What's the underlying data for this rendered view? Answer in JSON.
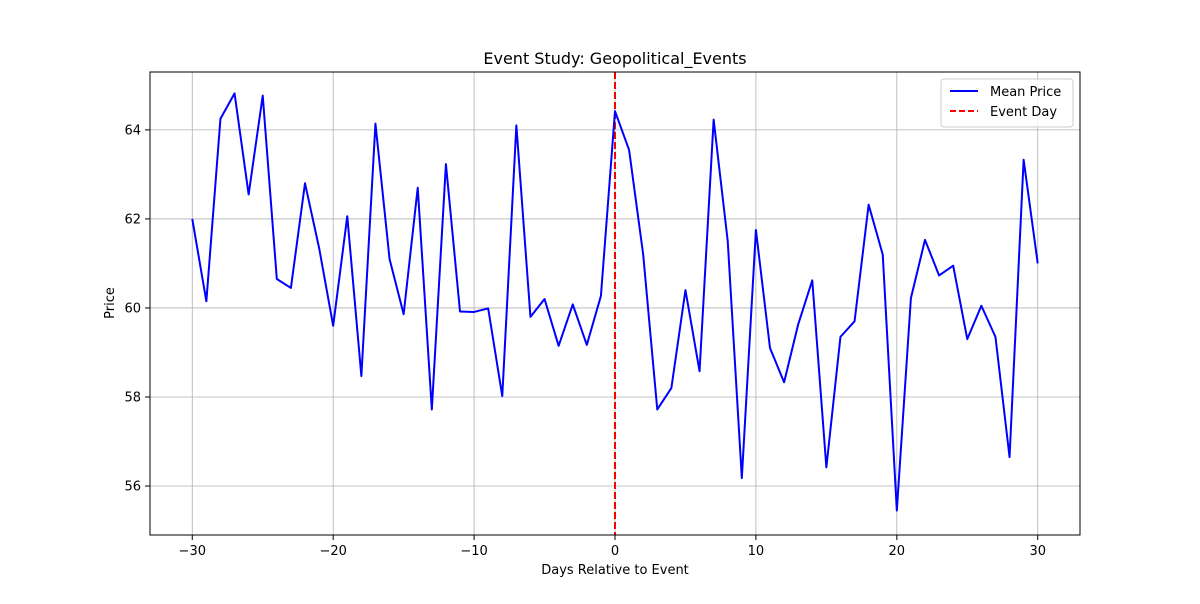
{
  "chart_data": {
    "type": "line",
    "title": "Event Study: Geopolitical_Events",
    "xlabel": "Days Relative to Event",
    "ylabel": "Price",
    "xlim": [
      -33,
      33
    ],
    "ylim": [
      54.9,
      65.3
    ],
    "xticks": [
      -30,
      -20,
      -10,
      0,
      10,
      20,
      30
    ],
    "xtick_labels": [
      "−30",
      "−20",
      "−10",
      "0",
      "10",
      "20",
      "30"
    ],
    "yticks": [
      56,
      58,
      60,
      62,
      64
    ],
    "ytick_labels": [
      "56",
      "58",
      "60",
      "62",
      "64"
    ],
    "grid": true,
    "legend": {
      "position": "top-right",
      "entries": [
        "Mean Price",
        "Event Day"
      ]
    },
    "series": [
      {
        "name": "Mean Price",
        "color": "#0000ff",
        "x": [
          -30,
          -29,
          -28,
          -27,
          -26,
          -25,
          -24,
          -23,
          -22,
          -21,
          -20,
          -19,
          -18,
          -17,
          -16,
          -15,
          -14,
          -13,
          -12,
          -11,
          -10,
          -9,
          -8,
          -7,
          -6,
          -5,
          -4,
          -3,
          -2,
          -1,
          0,
          1,
          2,
          3,
          4,
          5,
          6,
          7,
          8,
          9,
          10,
          11,
          12,
          13,
          14,
          15,
          16,
          17,
          18,
          19,
          20,
          21,
          22,
          23,
          24,
          25,
          26,
          27,
          28,
          29,
          30
        ],
        "values": [
          62.0,
          60.15,
          64.25,
          64.82,
          62.55,
          64.77,
          60.65,
          60.45,
          62.8,
          61.35,
          59.6,
          62.06,
          58.47,
          64.14,
          61.1,
          59.86,
          62.7,
          57.72,
          63.23,
          59.92,
          59.91,
          59.99,
          58.02,
          64.1,
          59.8,
          60.2,
          59.15,
          60.08,
          59.17,
          60.27,
          64.42,
          63.55,
          61.2,
          57.72,
          58.2,
          60.4,
          58.58,
          64.23,
          61.5,
          56.18,
          61.75,
          59.1,
          58.33,
          59.63,
          60.62,
          56.42,
          59.35,
          59.7,
          62.32,
          61.2,
          55.45,
          60.22,
          61.53,
          60.73,
          60.95,
          59.3,
          60.05,
          59.35,
          56.65,
          63.33,
          61.0
        ]
      }
    ],
    "vlines": [
      {
        "name": "Event Day",
        "x": 0,
        "color": "#ff0000",
        "style": "dashed"
      }
    ]
  }
}
